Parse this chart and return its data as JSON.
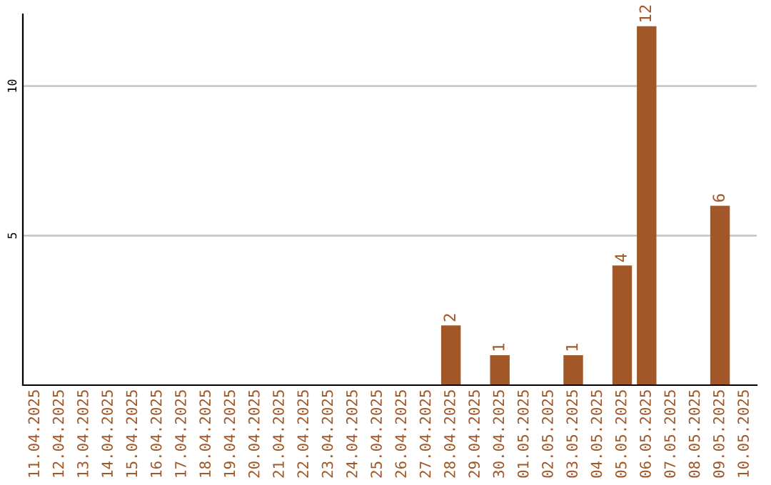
{
  "chart_data": {
    "type": "bar",
    "categories": [
      "11.04.2025",
      "12.04.2025",
      "13.04.2025",
      "14.04.2025",
      "15.04.2025",
      "16.04.2025",
      "17.04.2025",
      "18.04.2025",
      "19.04.2025",
      "20.04.2025",
      "21.04.2025",
      "22.04.2025",
      "23.04.2025",
      "24.04.2025",
      "25.04.2025",
      "26.04.2025",
      "27.04.2025",
      "28.04.2025",
      "29.04.2025",
      "30.04.2025",
      "01.05.2025",
      "02.05.2025",
      "03.05.2025",
      "04.05.2025",
      "05.05.2025",
      "06.05.2025",
      "07.05.2025",
      "08.05.2025",
      "09.05.2025",
      "10.05.2025"
    ],
    "values": [
      0,
      0,
      0,
      0,
      0,
      0,
      0,
      0,
      0,
      0,
      0,
      0,
      0,
      0,
      0,
      0,
      0,
      2,
      0,
      1,
      0,
      0,
      1,
      0,
      4,
      12,
      0,
      0,
      6,
      0
    ],
    "value_labels": [
      null,
      null,
      null,
      null,
      null,
      null,
      null,
      null,
      null,
      null,
      null,
      null,
      null,
      null,
      null,
      null,
      null,
      "2",
      null,
      "1",
      null,
      null,
      "1",
      null,
      "4",
      "12",
      null,
      null,
      "6",
      null
    ],
    "color": "#a15727",
    "ylim": [
      0,
      12.4
    ],
    "yticks": [
      5,
      10
    ],
    "grid": "y"
  }
}
